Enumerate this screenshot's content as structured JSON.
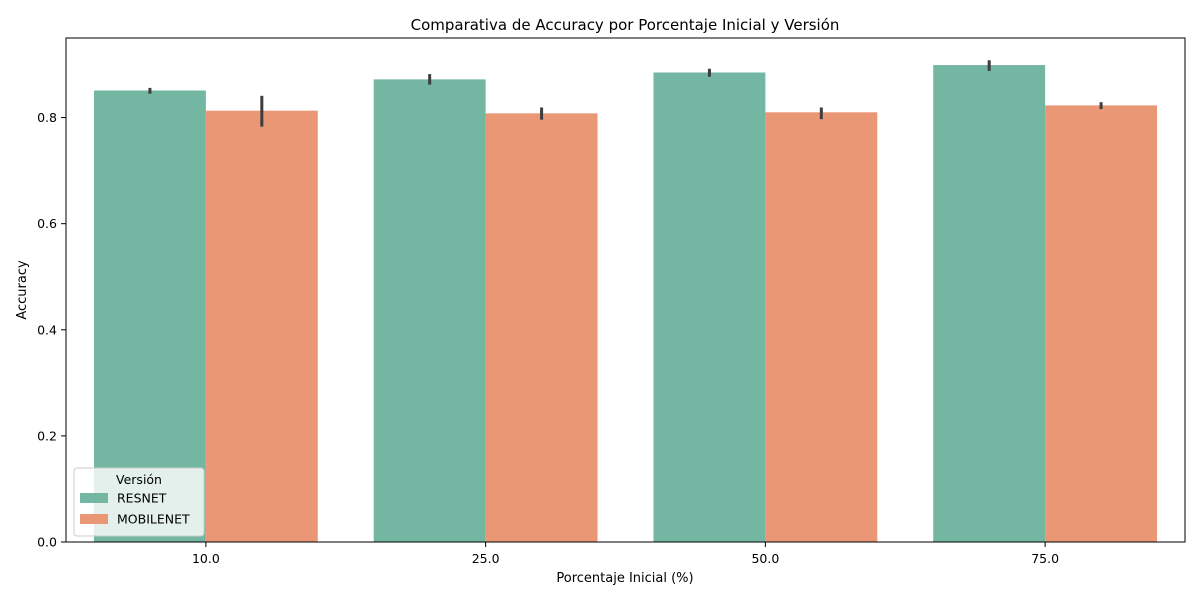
{
  "chart_data": {
    "type": "bar",
    "title": "Comparativa de Accuracy por Porcentaje Inicial y Versión",
    "xlabel": "Porcentaje Inicial (%)",
    "ylabel": "Accuracy",
    "categories": [
      "10.0",
      "25.0",
      "50.0",
      "75.0"
    ],
    "ylim": [
      0,
      0.95
    ],
    "yticks": [
      0.0,
      0.2,
      0.4,
      0.6,
      0.8
    ],
    "ytick_labels": [
      "0.0",
      "0.2",
      "0.4",
      "0.6",
      "0.8"
    ],
    "grid": false,
    "legend": {
      "title": "Versión",
      "placement": "lower-left"
    },
    "series": [
      {
        "name": "RESNET",
        "color": "#73b6a1",
        "values": [
          0.851,
          0.872,
          0.885,
          0.899
        ],
        "error_low": [
          0.845,
          0.862,
          0.877,
          0.888
        ],
        "error_high": [
          0.856,
          0.882,
          0.892,
          0.908
        ]
      },
      {
        "name": "MOBILENET",
        "color": "#e99775",
        "values": [
          0.813,
          0.808,
          0.81,
          0.823
        ],
        "error_low": [
          0.783,
          0.796,
          0.797,
          0.816
        ],
        "error_high": [
          0.841,
          0.819,
          0.819,
          0.829
        ]
      }
    ],
    "error_bar_color": "#3d3d3d"
  }
}
